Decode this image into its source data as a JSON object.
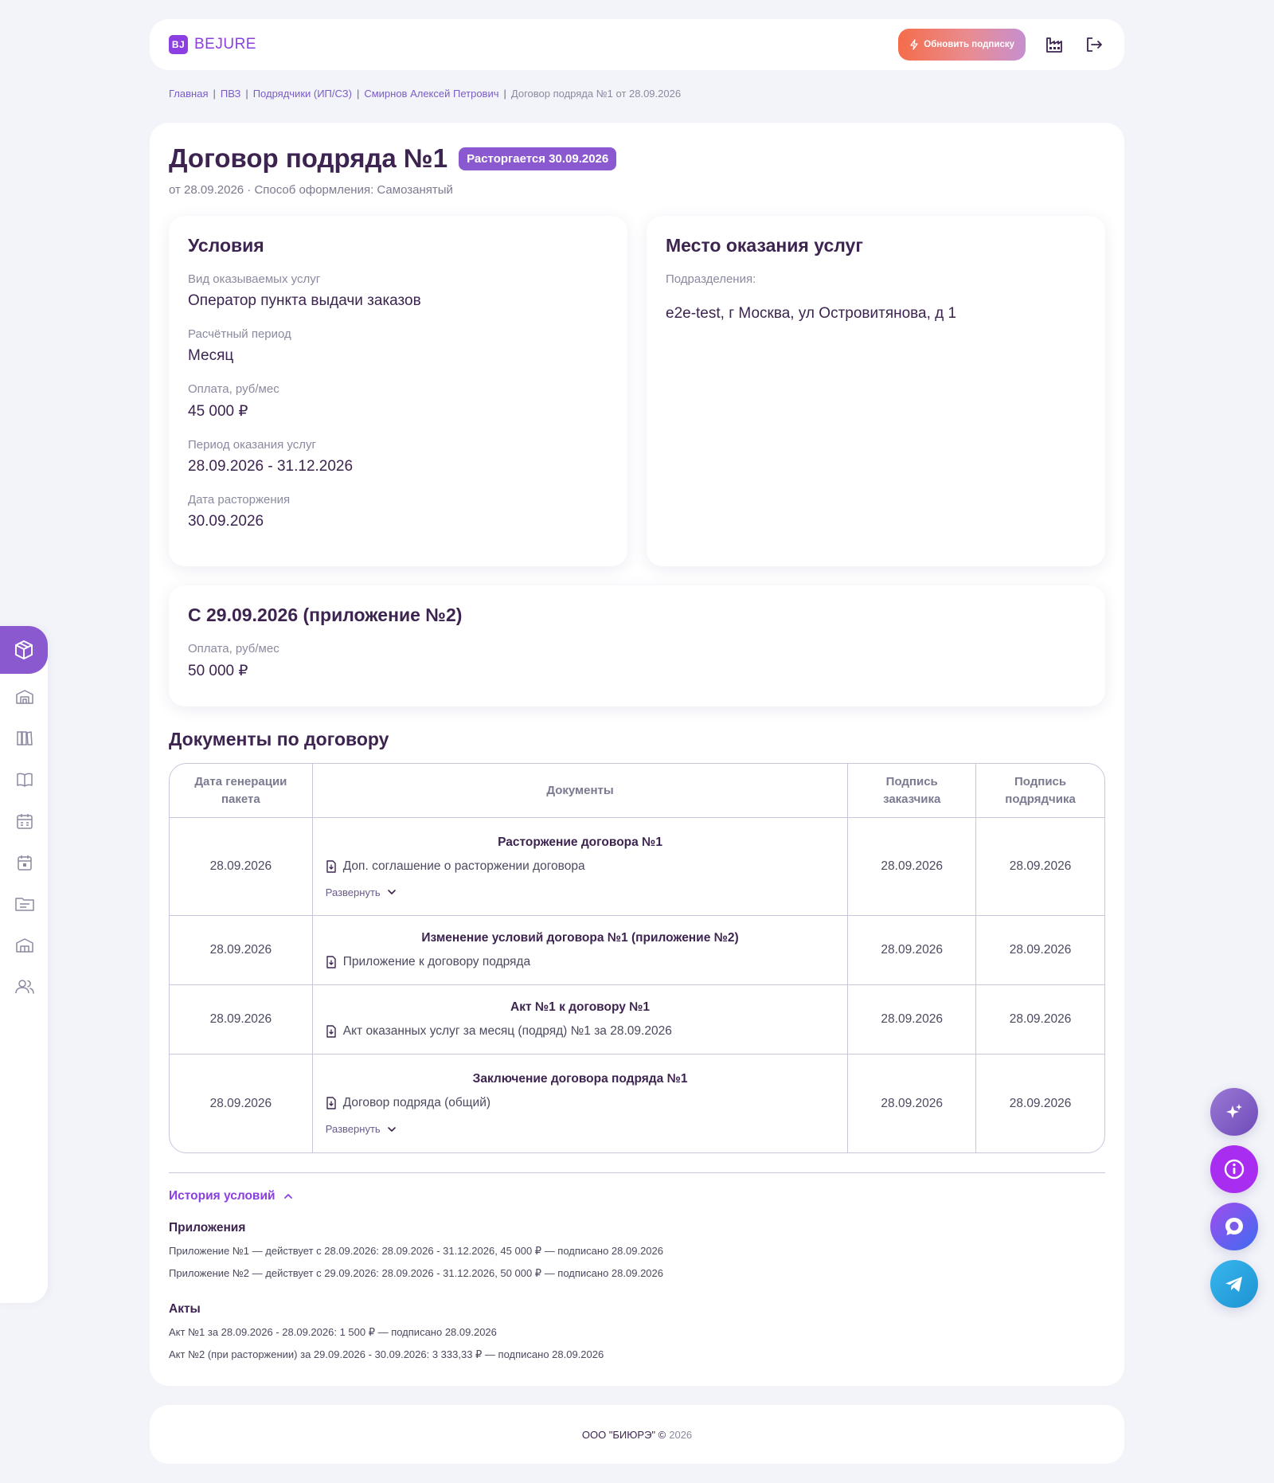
{
  "header": {
    "logo_mark": "BJ",
    "logo_text": "BEJURE",
    "upgrade_label": "Обновить подписку"
  },
  "breadcrumb": [
    "Главная",
    "ПВЗ",
    "Подрядчики (ИП/СЗ)",
    "Смирнов Алексей Петрович",
    "Договор подряда №1 от 28.09.2026"
  ],
  "page": {
    "title": "Договор подряда №1",
    "badge": "Расторгается 30.09.2026",
    "subtitle": "от 28.09.2026 · Способ оформления: Самозанятый"
  },
  "conditions": {
    "title": "Условия",
    "fields": [
      {
        "label": "Вид оказываемых услуг",
        "value": "Оператор пункта выдачи заказов"
      },
      {
        "label": "Расчётный период",
        "value": "Месяц"
      },
      {
        "label": "Оплата, руб/мес",
        "value": "45 000 ₽"
      },
      {
        "label": "Период оказания услуг",
        "value": "28.09.2026 - 31.12.2026"
      },
      {
        "label": "Дата расторжения",
        "value": "30.09.2026"
      }
    ]
  },
  "place": {
    "title": "Место оказания услуг",
    "label": "Подразделения:",
    "value": "e2e-test, г Москва, ул Островитянова, д 1"
  },
  "amendment": {
    "title": "С 29.09.2026 (приложение №2)",
    "label": "Оплата, руб/мес",
    "value": "50 000 ₽"
  },
  "documents": {
    "title": "Документы по договору",
    "headers": [
      "Дата генерации пакета",
      "Документы",
      "Подпись заказчика",
      "Подпись подрядчика"
    ],
    "expand_label": "Развернуть",
    "rows": [
      {
        "date": "28.09.2026",
        "title": "Расторжение договора №1",
        "doc": "Доп. соглашение о расторжении договора",
        "client_sign": "28.09.2026",
        "contractor_sign": "28.09.2026"
      },
      {
        "date": "28.09.2026",
        "title": "Изменение условий договора №1 (приложение №2)",
        "doc": "Приложение к договору подряда",
        "client_sign": "28.09.2026",
        "contractor_sign": "28.09.2026"
      },
      {
        "date": "28.09.2026",
        "title": "Акт №1 к договору №1",
        "doc": "Акт оказанных услуг за месяц (подряд) №1 за 28.09.2026",
        "client_sign": "28.09.2026",
        "contractor_sign": "28.09.2026"
      },
      {
        "date": "28.09.2026",
        "title": "Заключение договора подряда №1",
        "doc": "Договор подряда (общий)",
        "client_sign": "28.09.2026",
        "contractor_sign": "28.09.2026"
      }
    ]
  },
  "history": {
    "toggle_label": "История условий",
    "appendices_title": "Приложения",
    "appendices": [
      "Приложение №1 — действует с 28.09.2026: 28.09.2026 - 31.12.2026, 45 000 ₽ — подписано 28.09.2026",
      "Приложение №2 — действует с 29.09.2026: 28.09.2026 - 31.12.2026, 50 000 ₽ — подписано 28.09.2026"
    ],
    "acts_title": "Акты",
    "acts": [
      "Акт №1 за 28.09.2026 - 28.09.2026: 1 500 ₽ — подписано 28.09.2026",
      "Акт №2 (при расторжении) за 29.09.2026 - 30.09.2026: 3 333,33 ₽ — подписано 28.09.2026"
    ]
  },
  "footer": {
    "company": "ООО \"БИЮРЭ\" ©",
    "year": "2026"
  },
  "colors": {
    "accent": "#8b3fe0",
    "badge": "#8b59cf",
    "text_dark": "#3d2450",
    "background": "#f2f4f9"
  },
  "icons": {
    "sidebar": [
      "box-icon",
      "warehouse-icon",
      "book-shelf-icon",
      "open-book-icon",
      "calendar-icon",
      "calendar-day-icon",
      "folder-icon",
      "building-icon",
      "users-icon"
    ],
    "fabs": [
      "sparkle-icon",
      "info-icon",
      "chat-icon",
      "telegram-icon"
    ]
  }
}
